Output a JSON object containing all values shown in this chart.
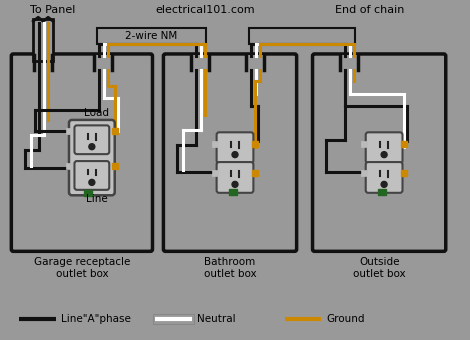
{
  "bg_color": "#999999",
  "title_text": "electrical101.com",
  "to_panel_text": "To Panel",
  "end_of_chain_text": "End of chain",
  "wire_nm_text": "2-wire NM",
  "box1_label": "Garage receptacle\noutlet box",
  "box2_label": "Bathroom\noutlet box",
  "box3_label": "Outside\noutlet box",
  "load_text": "Load",
  "line_text": "Line",
  "legend_black": "Line\"A\"phase",
  "legend_white": "Neutral",
  "legend_gold": "Ground",
  "black_color": "#111111",
  "white_color": "#ffffff",
  "gold_color": "#cc8800",
  "green_color": "#226622",
  "gray_color": "#aaaaaa",
  "outlet_gray": "#c0c0c0",
  "box_fill": "#999999",
  "dark_line": "#222222"
}
